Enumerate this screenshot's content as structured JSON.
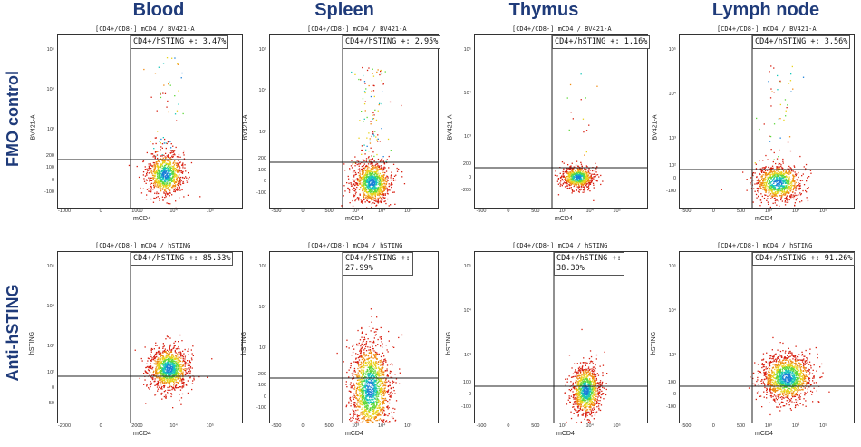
{
  "columns": [
    "Blood",
    "Spleen",
    "Thymus",
    "Lymph node"
  ],
  "rows": [
    "FMO control",
    "Anti-hSTING"
  ],
  "colors": {
    "heading": "#1f3b7a",
    "gate": "#222222"
  },
  "chart_data": [
    {
      "type": "scatter",
      "row": 0,
      "col": 0,
      "title": "[CD4+/CD8-] mCD4 / BV421-A",
      "xlabel": "mCD4",
      "ylabel": "BV421-A",
      "gate": "CD4+/hSTING +: 3.47%",
      "xticks": [
        "-1000",
        "0",
        "1000",
        "10⁴",
        "10⁵"
      ],
      "yticks": [
        "10⁵",
        "10⁴",
        "10³",
        "200",
        "100",
        "0",
        "-100"
      ]
    },
    {
      "type": "scatter",
      "row": 0,
      "col": 1,
      "title": "[CD4+/CD8-] mCD4 / BV421-A",
      "xlabel": "mCD4",
      "ylabel": "BV421-A",
      "gate": "CD4+/hSTING +: 2.95%",
      "xticks": [
        "-500",
        "0",
        "500",
        "10³",
        "10⁴",
        "10⁵"
      ],
      "yticks": [
        "10⁵",
        "10⁴",
        "10³",
        "200",
        "100",
        "0",
        "-100"
      ]
    },
    {
      "type": "scatter",
      "row": 0,
      "col": 2,
      "title": "[CD4+/CD8-] mCD4 / BV421-A",
      "xlabel": "mCD4",
      "ylabel": "BV421-A",
      "gate": "CD4+/hSTING +: 1.16%",
      "xticks": [
        "-500",
        "0",
        "500",
        "10³",
        "10⁴",
        "10⁵"
      ],
      "yticks": [
        "10⁵",
        "10⁴",
        "10³",
        "200",
        "0",
        "-200"
      ]
    },
    {
      "type": "scatter",
      "row": 0,
      "col": 3,
      "title": "[CD4+/CD8-] mCD4 / BV421-A",
      "xlabel": "mCD4",
      "ylabel": "BV421-A",
      "gate": "CD4+/hSTING +: 3.56%",
      "xticks": [
        "-500",
        "0",
        "500",
        "10³",
        "10⁴",
        "10⁵"
      ],
      "yticks": [
        "10⁵",
        "10⁴",
        "10³",
        "10²",
        "0",
        "-100"
      ]
    },
    {
      "type": "scatter",
      "row": 1,
      "col": 0,
      "title": "[CD4+/CD8-] mCD4 / hSTING",
      "xlabel": "mCD4",
      "ylabel": "hSTING",
      "gate": "CD4+/hSTING +: 85.53%",
      "xticks": [
        "-2000",
        "0",
        "2000",
        "10⁴",
        "10⁵"
      ],
      "yticks": [
        "10⁵",
        "10⁴",
        "10³",
        "10²",
        "0",
        "-50"
      ]
    },
    {
      "type": "scatter",
      "row": 1,
      "col": 1,
      "title": "[CD4+/CD8-] mCD4 / hSTING",
      "xlabel": "mCD4",
      "ylabel": "hSTING",
      "gate": "CD4+/hSTING +:\n27.99%",
      "xticks": [
        "-500",
        "0",
        "500",
        "10³",
        "10⁴",
        "10⁵"
      ],
      "yticks": [
        "10⁵",
        "10⁴",
        "10³",
        "200",
        "100",
        "0",
        "-100"
      ]
    },
    {
      "type": "scatter",
      "row": 1,
      "col": 2,
      "title": "[CD4+/CD8-] mCD4 / hSTING",
      "xlabel": "mCD4",
      "ylabel": "hSTING",
      "gate": "CD4+/hSTING +:\n38.30%",
      "xticks": [
        "-500",
        "0",
        "500",
        "10³",
        "10⁴",
        "10⁵"
      ],
      "yticks": [
        "10⁵",
        "10⁴",
        "10³",
        "100",
        "0",
        "-100"
      ]
    },
    {
      "type": "scatter",
      "row": 1,
      "col": 3,
      "title": "[CD4+/CD8-] mCD4 / hSTING",
      "xlabel": "mCD4",
      "ylabel": "hSTING",
      "gate": "CD4+/hSTING +: 91.26%",
      "xticks": [
        "-500",
        "0",
        "500",
        "10³",
        "10⁴",
        "10⁵"
      ],
      "yticks": [
        "10⁵",
        "10⁴",
        "10³",
        "100",
        "0",
        "-100"
      ]
    }
  ]
}
